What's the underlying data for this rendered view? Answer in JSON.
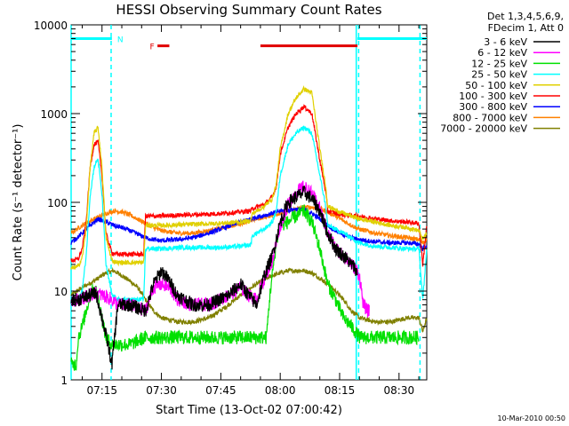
{
  "chart_data": {
    "type": "line",
    "title": "HESSI Observing Summary Count Rates",
    "xlabel": "Start Time (13-Oct-02 07:00:42)",
    "ylabel": "Count Rate (s⁻¹ detector⁻¹)",
    "ylog": true,
    "ylim": [
      1,
      10000
    ],
    "xlim_minutes": [
      7.2,
      97.0
    ],
    "x_ticks": [
      {
        "m": 15,
        "label": "07:15"
      },
      {
        "m": 30,
        "label": "07:30"
      },
      {
        "m": 45,
        "label": "07:45"
      },
      {
        "m": 60,
        "label": "08:00"
      },
      {
        "m": 75,
        "label": "08:15"
      },
      {
        "m": 90,
        "label": "08:30"
      }
    ],
    "y_ticks": [
      {
        "v": 1,
        "label": "1"
      },
      {
        "v": 10,
        "label": "10"
      },
      {
        "v": 100,
        "label": "100"
      },
      {
        "v": 1000,
        "label": "1000"
      },
      {
        "v": 10000,
        "label": "10000"
      }
    ],
    "grid": false,
    "legend_position": "top-right",
    "legend_header": [
      "Det 1,3,4,5,6,9,",
      "FDecim 1, Att 0"
    ],
    "footer_date": "10-Mar-2010 00:50",
    "flags": [
      {
        "label": "N",
        "color": "#00ffff",
        "segments": [
          [
            7.2,
            17.5
          ],
          [
            79.5,
            97.0
          ]
        ],
        "value": 7000
      },
      {
        "label": "F",
        "color": "#e00000",
        "segments": [
          [
            29.0,
            32.0
          ],
          [
            55.0,
            79.5
          ]
        ],
        "value": 5800
      }
    ],
    "vlines": [
      {
        "m": 7.2,
        "style": "solid",
        "color": "#00ffff"
      },
      {
        "m": 17.3,
        "style": "dashed",
        "color": "#00ffff"
      },
      {
        "m": 79.2,
        "style": "solid",
        "color": "#00ffff"
      },
      {
        "m": 79.8,
        "style": "dashed",
        "color": "#00ffff"
      },
      {
        "m": 95.3,
        "style": "dashed",
        "color": "#00ffff"
      }
    ],
    "series": [
      {
        "name": "3 - 6 keV",
        "color": "#000000",
        "x": [
          7.2,
          9,
          12,
          13.5,
          15,
          16.5,
          17.5,
          19,
          22,
          26,
          28,
          30,
          32,
          34,
          38,
          42,
          47,
          50,
          52,
          54,
          56,
          58,
          60,
          62,
          64,
          66,
          68,
          70,
          72,
          74,
          76,
          78,
          79,
          79.5
        ],
        "y": [
          8,
          8,
          9,
          9.5,
          5,
          2.5,
          1.5,
          7,
          7,
          6,
          12,
          17,
          13,
          9,
          7,
          7,
          9,
          12,
          9,
          7,
          15,
          25,
          60,
          100,
          115,
          130,
          110,
          80,
          45,
          30,
          25,
          20,
          18,
          15
        ]
      },
      {
        "name": "6 - 12 keV",
        "color": "#ff00ff",
        "x": [
          7.2,
          9,
          12,
          13.5,
          15,
          16.5,
          17.5,
          19,
          22,
          26,
          28,
          30,
          32,
          34,
          38,
          42,
          47,
          50,
          52,
          54,
          56,
          58,
          60,
          62,
          64,
          66,
          68,
          70,
          72,
          74,
          76,
          78,
          79,
          80,
          81,
          82,
          82.5
        ],
        "y": [
          8,
          8,
          9,
          9.5,
          9,
          8.5,
          8,
          7,
          7,
          6,
          11,
          12,
          11,
          8,
          7,
          7,
          9,
          11,
          9,
          8,
          14,
          22,
          55,
          95,
          130,
          150,
          125,
          85,
          45,
          30,
          25,
          20,
          18,
          15,
          7,
          6,
          6
        ]
      },
      {
        "name": "12 - 25 keV",
        "color": "#00e000",
        "x": [
          7.2,
          8.5,
          9,
          10,
          11,
          12,
          13,
          14,
          15,
          16,
          17.5,
          19,
          22,
          26,
          30,
          34,
          40,
          45,
          50,
          55,
          56.5,
          57.5,
          59,
          60,
          62,
          64,
          66,
          68,
          70,
          72,
          74,
          76,
          78,
          80,
          84,
          88,
          92,
          95
        ],
        "y": [
          1.5,
          1.5,
          3,
          4,
          6,
          9,
          11,
          9,
          5,
          3,
          2.5,
          2.5,
          2.5,
          3,
          3,
          3,
          3,
          3,
          3,
          3,
          3,
          10,
          35,
          55,
          60,
          70,
          80,
          60,
          30,
          12,
          8,
          5,
          4,
          3,
          3,
          3,
          3,
          3
        ]
      },
      {
        "name": "25 - 50 keV",
        "color": "#00ffff",
        "x": [
          7.2,
          9,
          10,
          11,
          12,
          13,
          14,
          15,
          16,
          17.5,
          19,
          22,
          25.5,
          26,
          30,
          35,
          40,
          45,
          50,
          52.5,
          53,
          56,
          58,
          59,
          60,
          62,
          64,
          66,
          68,
          70,
          71.5,
          72,
          76,
          80,
          84,
          88,
          92,
          95,
          96,
          97
        ],
        "y": [
          7,
          8,
          10,
          25,
          120,
          250,
          310,
          120,
          20,
          9,
          8,
          8,
          8,
          30,
          30,
          31,
          31,
          31,
          32,
          33,
          42,
          50,
          60,
          80,
          200,
          450,
          600,
          700,
          600,
          200,
          90,
          55,
          45,
          35,
          32,
          31,
          30,
          30,
          8,
          30
        ]
      },
      {
        "name": "50 - 100 keV",
        "color": "#e0d000",
        "x": [
          7.2,
          9,
          10,
          11,
          12,
          13,
          14,
          15,
          16,
          17.5,
          19,
          22,
          25.5,
          26,
          30,
          35,
          40,
          45,
          50,
          52.5,
          53,
          56,
          58,
          59,
          60,
          62,
          64,
          66,
          68,
          70,
          71.5,
          72,
          76,
          80,
          84,
          88,
          92,
          95,
          96,
          97
        ],
        "y": [
          18,
          19,
          24,
          50,
          250,
          600,
          700,
          250,
          40,
          22,
          21,
          21,
          21,
          55,
          55,
          56,
          57,
          58,
          60,
          62,
          75,
          90,
          110,
          160,
          400,
          1000,
          1500,
          1900,
          1700,
          400,
          150,
          90,
          75,
          65,
          60,
          55,
          52,
          48,
          38,
          45
        ]
      },
      {
        "name": "100 - 300 keV",
        "color": "#ff0000",
        "x": [
          7.2,
          9,
          10,
          11,
          12,
          13,
          14,
          15,
          16,
          17.5,
          19,
          22,
          25.5,
          26,
          30,
          35,
          40,
          45,
          50,
          52.5,
          53,
          56,
          58,
          59,
          60,
          62,
          64,
          66,
          68,
          70,
          71.5,
          72,
          76,
          80,
          84,
          88,
          92,
          95,
          96,
          97
        ],
        "y": [
          22,
          23,
          30,
          60,
          250,
          450,
          480,
          200,
          45,
          27,
          26,
          26,
          26,
          70,
          70,
          72,
          73,
          75,
          78,
          80,
          85,
          95,
          115,
          150,
          350,
          700,
          1000,
          1200,
          1000,
          300,
          130,
          80,
          72,
          70,
          65,
          62,
          60,
          58,
          20,
          55
        ]
      },
      {
        "name": "300 - 800 keV",
        "color": "#0000ff",
        "x": [
          7.2,
          10,
          12,
          14,
          16,
          18,
          20,
          22,
          24,
          26,
          28,
          30,
          34,
          38,
          42,
          46,
          50,
          54,
          58,
          60,
          62,
          64,
          66,
          68,
          70,
          72,
          74,
          76,
          78,
          80,
          84,
          88,
          92,
          95,
          96,
          97
        ],
        "y": [
          35,
          45,
          55,
          65,
          60,
          55,
          52,
          48,
          44,
          40,
          38,
          37,
          38,
          40,
          45,
          52,
          60,
          68,
          75,
          80,
          82,
          84,
          82,
          75,
          65,
          55,
          48,
          43,
          40,
          38,
          36,
          35,
          35,
          34,
          30,
          33
        ]
      },
      {
        "name": "800 - 7000 keV",
        "color": "#ff8000",
        "x": [
          7.2,
          10,
          13,
          16,
          18,
          20,
          22,
          24,
          26,
          28,
          30,
          34,
          38,
          42,
          46,
          50,
          54,
          58,
          62,
          66,
          68,
          70,
          72,
          74,
          76,
          78,
          80,
          84,
          88,
          92,
          95,
          96,
          97
        ],
        "y": [
          45,
          55,
          65,
          75,
          80,
          78,
          72,
          65,
          58,
          52,
          48,
          45,
          45,
          48,
          52,
          58,
          65,
          72,
          80,
          88,
          88,
          85,
          78,
          70,
          62,
          55,
          50,
          45,
          42,
          40,
          38,
          35,
          38
        ]
      },
      {
        "name": "7000 - 20000 keV",
        "color": "#808000",
        "x": [
          7.2,
          10,
          13,
          16,
          18,
          20,
          22,
          24,
          26,
          28,
          30,
          34,
          38,
          42,
          46,
          50,
          54,
          58,
          62,
          66,
          68,
          70,
          72,
          74,
          76,
          78,
          80,
          84,
          88,
          92,
          95,
          96,
          97
        ],
        "y": [
          9,
          11,
          13,
          16,
          17,
          15,
          13,
          11,
          8,
          6,
          5,
          4.5,
          4.5,
          5,
          6.5,
          9,
          12,
          15,
          17,
          17,
          16,
          14,
          12,
          10,
          8,
          6,
          5,
          4.5,
          4.5,
          5,
          5,
          3.5,
          5
        ]
      }
    ]
  }
}
